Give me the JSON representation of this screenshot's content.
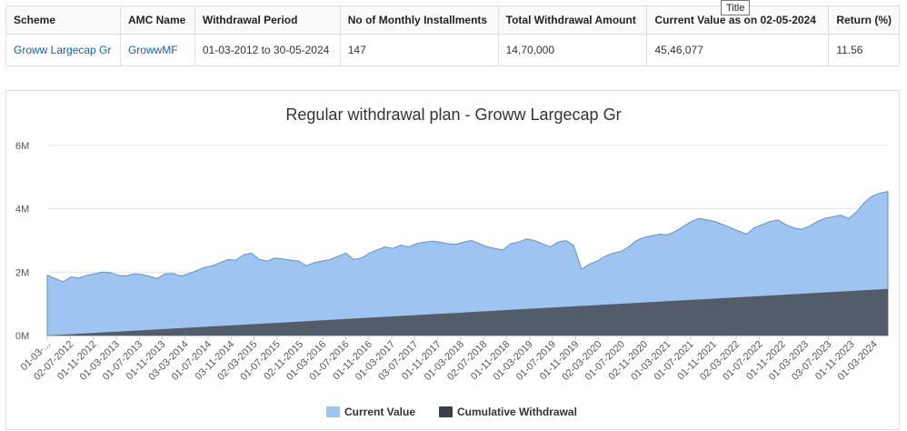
{
  "tooltip": "Title",
  "table": {
    "headers": [
      "Scheme",
      "AMC Name",
      "Withdrawal Period",
      "No of Monthly Installments",
      "Total Withdrawal Amount",
      "Current Value as on 02-05-2024",
      "Return (%)"
    ],
    "row": {
      "scheme": "Groww Largecap Gr",
      "amc": "GrowwMF",
      "period": "01-03-2012 to 30-05-2024",
      "installments": "147",
      "total_withdrawal": "14,70,000",
      "current_value": "45,46,077",
      "return_pct": "11.56"
    }
  },
  "chart_data": {
    "type": "area",
    "title": "Regular withdrawal plan - Groww Largecap Gr",
    "ylim": [
      0,
      6000000
    ],
    "y_ticks": [
      0,
      2000000,
      4000000,
      6000000
    ],
    "y_tick_labels": [
      "0M",
      "2M",
      "4M",
      "6M"
    ],
    "x_tick_labels": [
      "01-03-...",
      "02-07-2012",
      "01-11-2012",
      "01-03-2013",
      "01-07-2013",
      "01-11-2013",
      "03-03-2014",
      "01-07-2014",
      "03-11-2014",
      "02-03-2015",
      "01-07-2015",
      "02-11-2015",
      "01-03-2016",
      "01-07-2016",
      "01-11-2016",
      "01-03-2017",
      "03-07-2017",
      "01-11-2017",
      "01-03-2018",
      "02-07-2018",
      "01-11-2018",
      "01-03-2019",
      "01-07-2019",
      "01-11-2019",
      "02-03-2020",
      "01-07-2020",
      "02-11-2020",
      "01-03-2021",
      "01-07-2021",
      "01-11-2021",
      "02-03-2022",
      "01-07-2022",
      "01-11-2022",
      "01-03-2023",
      "03-07-2023",
      "01-11-2023",
      "01-03-2024"
    ],
    "legend_position": "bottom-center",
    "grid": true,
    "series": [
      {
        "name": "Current Value",
        "color": "#9ec4f1",
        "values": [
          1900000,
          1800000,
          1700000,
          1850000,
          1820000,
          1900000,
          1950000,
          2000000,
          1990000,
          1900000,
          1880000,
          1950000,
          1930000,
          1870000,
          1800000,
          1950000,
          1960000,
          1880000,
          1950000,
          2050000,
          2150000,
          2200000,
          2300000,
          2400000,
          2380000,
          2550000,
          2600000,
          2400000,
          2350000,
          2450000,
          2420000,
          2380000,
          2350000,
          2200000,
          2300000,
          2350000,
          2400000,
          2500000,
          2600000,
          2400000,
          2450000,
          2600000,
          2700000,
          2800000,
          2750000,
          2850000,
          2800000,
          2900000,
          2950000,
          2980000,
          2950000,
          2900000,
          2880000,
          2950000,
          3000000,
          2900000,
          2800000,
          2750000,
          2700000,
          2900000,
          2950000,
          3050000,
          3000000,
          2900000,
          2800000,
          2950000,
          3000000,
          2850000,
          2100000,
          2250000,
          2350000,
          2500000,
          2600000,
          2650000,
          2800000,
          3000000,
          3100000,
          3150000,
          3200000,
          3180000,
          3300000,
          3450000,
          3600000,
          3700000,
          3650000,
          3600000,
          3500000,
          3400000,
          3300000,
          3200000,
          3400000,
          3500000,
          3600000,
          3650000,
          3500000,
          3400000,
          3350000,
          3450000,
          3600000,
          3700000,
          3750000,
          3800000,
          3700000,
          3900000,
          4200000,
          4400000,
          4500000,
          4546077
        ]
      },
      {
        "name": "Cumulative Withdrawal",
        "color": "#525c6b",
        "values": [
          0,
          1470000
        ]
      }
    ]
  }
}
